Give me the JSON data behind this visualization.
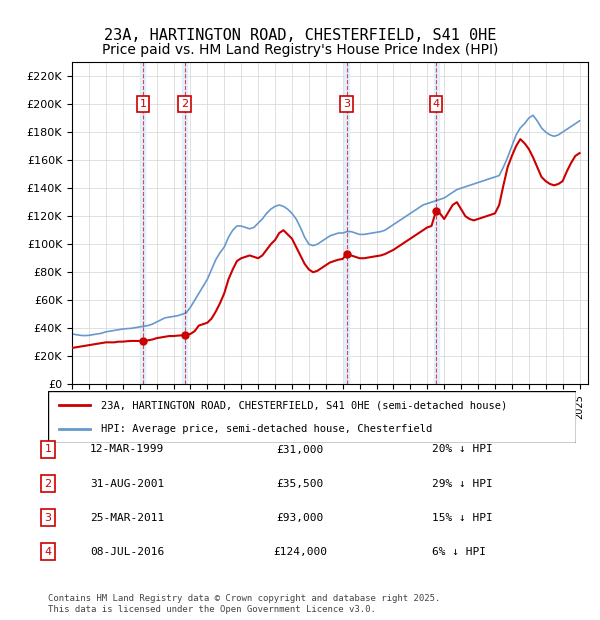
{
  "title": "23A, HARTINGTON ROAD, CHESTERFIELD, S41 0HE",
  "subtitle": "Price paid vs. HM Land Registry's House Price Index (HPI)",
  "xlabel": "",
  "ylabel": "",
  "ylim": [
    0,
    230000
  ],
  "yticks": [
    0,
    20000,
    40000,
    60000,
    80000,
    100000,
    120000,
    140000,
    160000,
    180000,
    200000,
    220000
  ],
  "xlim_start": 1995.0,
  "xlim_end": 2025.5,
  "red_color": "#cc0000",
  "blue_color": "#6699cc",
  "shading_color": "#ddeeff",
  "transaction_color": "#cc0000",
  "title_fontsize": 11,
  "subtitle_fontsize": 10,
  "legend_line1": "23A, HARTINGTON ROAD, CHESTERFIELD, S41 0HE (semi-detached house)",
  "legend_line2": "HPI: Average price, semi-detached house, Chesterfield",
  "transactions": [
    {
      "num": 1,
      "date": "12-MAR-1999",
      "price": 31000,
      "year": 1999.19,
      "hpi_pct": "20% ↓ HPI"
    },
    {
      "num": 2,
      "date": "31-AUG-2001",
      "price": 35500,
      "year": 2001.66,
      "hpi_pct": "29% ↓ HPI"
    },
    {
      "num": 3,
      "date": "25-MAR-2011",
      "price": 93000,
      "year": 2011.23,
      "hpi_pct": "15% ↓ HPI"
    },
    {
      "num": 4,
      "date": "08-JUL-2016",
      "price": 124000,
      "year": 2016.52,
      "hpi_pct": "6% ↓ HPI"
    }
  ],
  "footer": "Contains HM Land Registry data © Crown copyright and database right 2025.\nThis data is licensed under the Open Government Licence v3.0.",
  "hpi_data_x": [
    1995.0,
    1995.25,
    1995.5,
    1995.75,
    1996.0,
    1996.25,
    1996.5,
    1996.75,
    1997.0,
    1997.25,
    1997.5,
    1997.75,
    1998.0,
    1998.25,
    1998.5,
    1998.75,
    1999.0,
    1999.25,
    1999.5,
    1999.75,
    2000.0,
    2000.25,
    2000.5,
    2000.75,
    2001.0,
    2001.25,
    2001.5,
    2001.75,
    2002.0,
    2002.25,
    2002.5,
    2002.75,
    2003.0,
    2003.25,
    2003.5,
    2003.75,
    2004.0,
    2004.25,
    2004.5,
    2004.75,
    2005.0,
    2005.25,
    2005.5,
    2005.75,
    2006.0,
    2006.25,
    2006.5,
    2006.75,
    2007.0,
    2007.25,
    2007.5,
    2007.75,
    2008.0,
    2008.25,
    2008.5,
    2008.75,
    2009.0,
    2009.25,
    2009.5,
    2009.75,
    2010.0,
    2010.25,
    2010.5,
    2010.75,
    2011.0,
    2011.25,
    2011.5,
    2011.75,
    2012.0,
    2012.25,
    2012.5,
    2012.75,
    2013.0,
    2013.25,
    2013.5,
    2013.75,
    2014.0,
    2014.25,
    2014.5,
    2014.75,
    2015.0,
    2015.25,
    2015.5,
    2015.75,
    2016.0,
    2016.25,
    2016.5,
    2016.75,
    2017.0,
    2017.25,
    2017.5,
    2017.75,
    2018.0,
    2018.25,
    2018.5,
    2018.75,
    2019.0,
    2019.25,
    2019.5,
    2019.75,
    2020.0,
    2020.25,
    2020.5,
    2020.75,
    2021.0,
    2021.25,
    2021.5,
    2021.75,
    2022.0,
    2022.25,
    2022.5,
    2022.75,
    2023.0,
    2023.25,
    2023.5,
    2023.75,
    2024.0,
    2024.25,
    2024.5,
    2024.75,
    2025.0
  ],
  "hpi_data_y": [
    36000,
    35500,
    35000,
    34800,
    35000,
    35500,
    36000,
    36500,
    37500,
    38000,
    38500,
    39000,
    39500,
    39800,
    40000,
    40500,
    41000,
    41500,
    42000,
    43000,
    44500,
    46000,
    47500,
    48000,
    48500,
    49000,
    50000,
    51000,
    55000,
    60000,
    65000,
    70000,
    75000,
    82000,
    89000,
    94000,
    98000,
    105000,
    110000,
    113000,
    113000,
    112000,
    111000,
    112000,
    115000,
    118000,
    122000,
    125000,
    127000,
    128000,
    127000,
    125000,
    122000,
    118000,
    112000,
    105000,
    100000,
    99000,
    100000,
    102000,
    104000,
    106000,
    107000,
    108000,
    108000,
    109000,
    109000,
    108000,
    107000,
    107000,
    107500,
    108000,
    108500,
    109000,
    110000,
    112000,
    114000,
    116000,
    118000,
    120000,
    122000,
    124000,
    126000,
    128000,
    129000,
    130000,
    131000,
    132000,
    133000,
    135000,
    137000,
    139000,
    140000,
    141000,
    142000,
    143000,
    144000,
    145000,
    146000,
    147000,
    148000,
    149000,
    155000,
    162000,
    170000,
    178000,
    183000,
    186000,
    190000,
    192000,
    188000,
    183000,
    180000,
    178000,
    177000,
    178000,
    180000,
    182000,
    184000,
    186000,
    188000
  ],
  "price_data_x": [
    1995.0,
    1995.25,
    1995.5,
    1995.75,
    1996.0,
    1996.25,
    1996.5,
    1996.75,
    1997.0,
    1997.25,
    1997.5,
    1997.75,
    1998.0,
    1998.25,
    1998.5,
    1998.75,
    1999.0,
    1999.19,
    1999.5,
    1999.75,
    2000.0,
    2000.25,
    2000.5,
    2000.75,
    2001.0,
    2001.25,
    2001.5,
    2001.66,
    2001.75,
    2002.0,
    2002.25,
    2002.5,
    2002.75,
    2003.0,
    2003.25,
    2003.5,
    2003.75,
    2004.0,
    2004.25,
    2004.5,
    2004.75,
    2005.0,
    2005.25,
    2005.5,
    2005.75,
    2006.0,
    2006.25,
    2006.5,
    2006.75,
    2007.0,
    2007.25,
    2007.5,
    2007.75,
    2008.0,
    2008.25,
    2008.5,
    2008.75,
    2009.0,
    2009.25,
    2009.5,
    2009.75,
    2010.0,
    2010.25,
    2010.5,
    2010.75,
    2011.0,
    2011.23,
    2011.5,
    2011.75,
    2012.0,
    2012.25,
    2012.5,
    2012.75,
    2013.0,
    2013.25,
    2013.5,
    2013.75,
    2014.0,
    2014.25,
    2014.5,
    2014.75,
    2015.0,
    2015.25,
    2015.5,
    2015.75,
    2016.0,
    2016.25,
    2016.52,
    2016.75,
    2017.0,
    2017.25,
    2017.5,
    2017.75,
    2018.0,
    2018.25,
    2018.5,
    2018.75,
    2019.0,
    2019.25,
    2019.5,
    2019.75,
    2020.0,
    2020.25,
    2020.5,
    2020.75,
    2021.0,
    2021.25,
    2021.5,
    2021.75,
    2022.0,
    2022.25,
    2022.5,
    2022.75,
    2023.0,
    2023.25,
    2023.5,
    2023.75,
    2024.0,
    2024.25,
    2024.5,
    2024.75,
    2025.0
  ],
  "price_data_y": [
    26000,
    26500,
    27000,
    27500,
    28000,
    28500,
    29000,
    29500,
    30000,
    30000,
    30000,
    30500,
    30500,
    30800,
    31000,
    31000,
    31000,
    31000,
    31500,
    32000,
    33000,
    33500,
    34000,
    34500,
    34500,
    34800,
    35000,
    35500,
    35500,
    36000,
    38000,
    42000,
    43000,
    44000,
    47000,
    52000,
    58000,
    65000,
    75000,
    82000,
    88000,
    90000,
    91000,
    92000,
    91000,
    90000,
    92000,
    96000,
    100000,
    103000,
    108000,
    110000,
    107000,
    104000,
    98000,
    92000,
    86000,
    82000,
    80000,
    81000,
    83000,
    85000,
    87000,
    88000,
    89000,
    89500,
    93000,
    92000,
    91000,
    90000,
    90000,
    90500,
    91000,
    91500,
    92000,
    93000,
    94500,
    96000,
    98000,
    100000,
    102000,
    104000,
    106000,
    108000,
    110000,
    112000,
    113000,
    124000,
    122000,
    118000,
    123000,
    128000,
    130000,
    125000,
    120000,
    118000,
    117000,
    118000,
    119000,
    120000,
    121000,
    122000,
    128000,
    142000,
    155000,
    163000,
    170000,
    175000,
    172000,
    168000,
    162000,
    155000,
    148000,
    145000,
    143000,
    142000,
    143000,
    145000,
    152000,
    158000,
    163000,
    165000
  ]
}
